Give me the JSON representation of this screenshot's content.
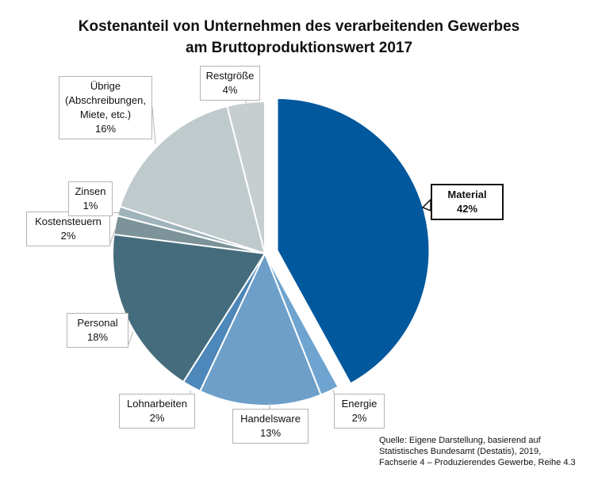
{
  "chart_data": {
    "type": "pie",
    "title_lines": [
      "Kostenanteil von Unternehmen des verarbeitenden Gewerbes",
      "am Bruttoproduktionswert 2017"
    ],
    "unit": "%",
    "highlighted": "Material",
    "exploded": "Material",
    "slices": [
      {
        "label_lines": [
          "Material"
        ],
        "value": 42,
        "value_text": "42%",
        "color": "#01589d"
      },
      {
        "label_lines": [
          "Energie"
        ],
        "value": 2,
        "value_text": "2%",
        "color": "#6ea4cf"
      },
      {
        "label_lines": [
          "Handelsware"
        ],
        "value": 13,
        "value_text": "13%",
        "color": "#6d9fc9"
      },
      {
        "label_lines": [
          "Lohnarbeiten"
        ],
        "value": 2,
        "value_text": "2%",
        "color": "#4e87b9"
      },
      {
        "label_lines": [
          "Personal"
        ],
        "value": 18,
        "value_text": "18%",
        "color": "#456c7c"
      },
      {
        "label_lines": [
          "Kostensteuern"
        ],
        "value": 2,
        "value_text": "2%",
        "color": "#7b9399"
      },
      {
        "label_lines": [
          "Zinsen"
        ],
        "value": 1,
        "value_text": "1%",
        "color": "#9fb3ba"
      },
      {
        "label_lines": [
          "Übrige",
          "(Abschreibungen,",
          "Miete, etc.)"
        ],
        "value": 16,
        "value_text": "16%",
        "color": "#bfcacd"
      },
      {
        "label_lines": [
          "Restgröße"
        ],
        "value": 4,
        "value_text": "4%",
        "color": "#c6ced0"
      }
    ]
  },
  "source_lines": [
    "Quelle: Eigene Darstellung, basierend auf",
    "Statistisches Bundesamt (Destatis), 2019,",
    "Fachserie 4 – Produzierendes Gewerbe, Reihe 4.3"
  ]
}
